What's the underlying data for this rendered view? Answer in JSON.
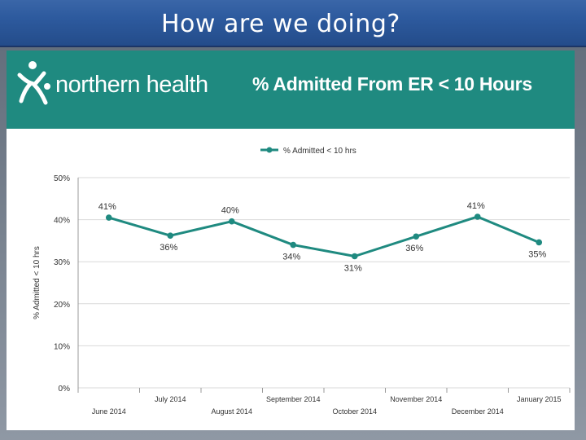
{
  "slide": {
    "title": "How are we doing?"
  },
  "banner": {
    "logo_text": "northern health",
    "logo_icon": "northern-health-figure-icon",
    "title": "% Admitted From ER < 10 Hours",
    "color": "#1f8a80"
  },
  "chart_data": {
    "type": "line",
    "title": "% Admitted From ER < 10 Hours",
    "ylabel": "% Admitted < 10 hrs",
    "xlabel": "",
    "ylim": [
      0,
      50
    ],
    "yticks": [
      "0%",
      "10%",
      "20%",
      "30%",
      "40%",
      "50%"
    ],
    "ytick_values": [
      0,
      10,
      20,
      30,
      40,
      50
    ],
    "grid": true,
    "legend_position": "top-center",
    "categories": [
      "June 2014",
      "July 2014",
      "August 2014",
      "September 2014",
      "October 2014",
      "November 2014",
      "December 2014",
      "January 2015"
    ],
    "series": [
      {
        "name": "% Admitted < 10 hrs",
        "color": "#1f8a80",
        "values": [
          40.5,
          36.2,
          39.6,
          34.0,
          31.3,
          36.0,
          40.7,
          34.6
        ],
        "labels": [
          "41%",
          "36%",
          "40%",
          "34%",
          "31%",
          "36%",
          "41%",
          "35%"
        ]
      }
    ]
  }
}
